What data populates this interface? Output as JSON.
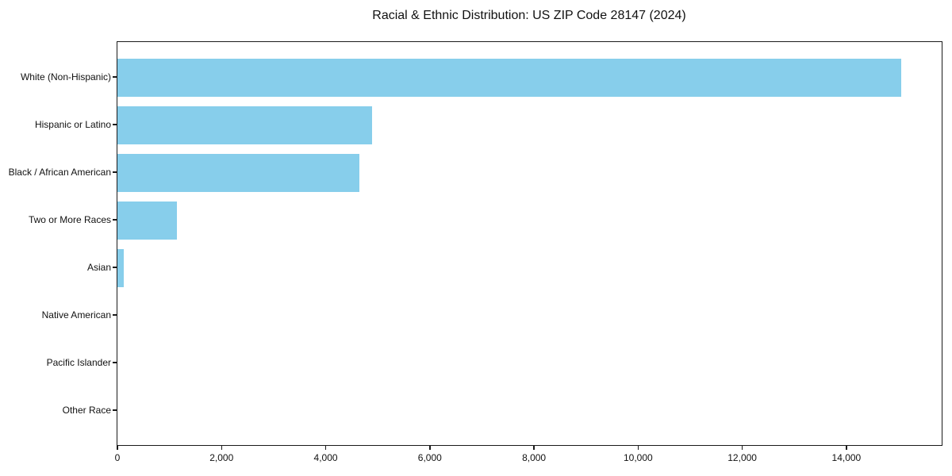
{
  "chart_data": {
    "type": "bar",
    "orientation": "horizontal",
    "title": "Racial & Ethnic Distribution: US ZIP Code 28147 (2024)",
    "categories": [
      "White (Non-Hispanic)",
      "Hispanic or Latino",
      "Black / African American",
      "Two or More Races",
      "Asian",
      "Native American",
      "Pacific Islander",
      "Other Race"
    ],
    "values": [
      15060,
      4890,
      4650,
      1140,
      120,
      0,
      0,
      0
    ],
    "xlabel": "",
    "ylabel": "",
    "xlim": [
      0,
      15830
    ],
    "xticks": [
      0,
      2000,
      4000,
      6000,
      8000,
      10000,
      12000,
      14000
    ],
    "xtick_labels": [
      "0",
      "2,000",
      "4,000",
      "6,000",
      "8,000",
      "10,000",
      "12,000",
      "14,000"
    ],
    "bar_color": "#87CEEB",
    "axis_color": "#1a1a1a",
    "grid": false,
    "legend_position": "none"
  }
}
